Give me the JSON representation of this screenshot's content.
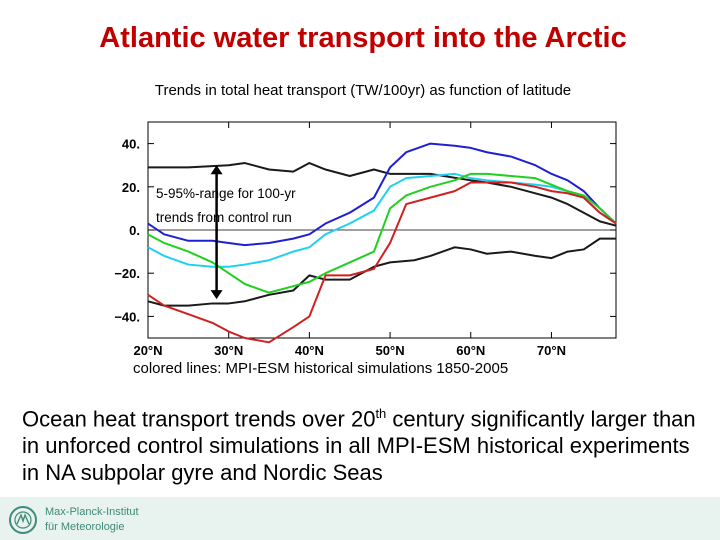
{
  "slide": {
    "title": "Atlantic water transport into the Arctic",
    "subtitle": "Trends in total heat transport (TW/100yr) as function of latitude",
    "caption": "colored  lines: MPI-ESM historical simulations 1850-2005",
    "body_part1": "Ocean heat transport trends over 20",
    "body_sup": "th",
    "body_part2": " century significantly larger than in unforced control simulations in all MPI-ESM historical experiments in NA subpolar gyre and Nordic Seas",
    "logo_line1": "Max-Planck-Institut",
    "logo_line2": "für Meteorologie",
    "logo_color": "#3f8a78"
  },
  "chart_data": {
    "type": "line",
    "title": "",
    "xlabel": "",
    "ylabel": "",
    "xlim": [
      20,
      78
    ],
    "ylim": [
      -50,
      50
    ],
    "x_ticks": [
      20,
      30,
      40,
      50,
      60,
      70
    ],
    "x_tick_labels": [
      "20°N",
      "30°N",
      "40°N",
      "50°N",
      "60°N",
      "70°N"
    ],
    "y_ticks": [
      40,
      20,
      0,
      -20,
      -40
    ],
    "y_tick_labels": [
      "40.",
      "20.",
      "0.",
      "−20.",
      "−40."
    ],
    "zero_line": true,
    "annotation": {
      "text_line1": "5-95%-range for 100-yr",
      "text_line2": "trends from control run",
      "x": 28.5,
      "y_top": 30,
      "y_bottom": -32
    },
    "series": [
      {
        "color": "#1a1a1a",
        "x": [
          20,
          25,
          30,
          32,
          35,
          38,
          40,
          42,
          45,
          48,
          50,
          55,
          60,
          62,
          65,
          68,
          70,
          72,
          74,
          76,
          78
        ],
        "y": [
          29,
          29,
          30,
          31,
          28,
          27,
          31,
          28,
          25,
          28,
          26,
          26,
          23,
          22,
          20,
          17,
          15,
          12,
          8,
          4,
          2
        ]
      },
      {
        "color": "#1a1a1a",
        "x": [
          20,
          22,
          25,
          28,
          30,
          32,
          35,
          38,
          40,
          42,
          45,
          48,
          50,
          53,
          55,
          58,
          60,
          62,
          65,
          68,
          70,
          72,
          74,
          76,
          78
        ],
        "y": [
          -33,
          -35,
          -35,
          -34,
          -34,
          -33,
          -30,
          -28,
          -21,
          -23,
          -23,
          -17,
          -15,
          -14,
          -12,
          -8,
          -9,
          -11,
          -10,
          -12,
          -13,
          -10,
          -9,
          -4,
          -4
        ]
      },
      {
        "color": "#2020d0",
        "x": [
          20,
          22,
          25,
          28,
          30,
          32,
          35,
          38,
          40,
          42,
          45,
          48,
          50,
          52,
          55,
          58,
          60,
          62,
          65,
          68,
          70,
          72,
          74,
          76,
          78
        ],
        "y": [
          3,
          -2,
          -5,
          -5,
          -6,
          -7,
          -6,
          -4,
          -2,
          3,
          8,
          15,
          29,
          36,
          40,
          39,
          38,
          36,
          34,
          30,
          26,
          23,
          18,
          10,
          3
        ]
      },
      {
        "color": "#20d0f0",
        "x": [
          20,
          22,
          25,
          28,
          30,
          32,
          35,
          38,
          40,
          42,
          45,
          48,
          50,
          52,
          55,
          58,
          60,
          62,
          65,
          68,
          70,
          72,
          74,
          76,
          78
        ],
        "y": [
          -8,
          -12,
          -16,
          -17,
          -17,
          -16,
          -14,
          -10,
          -8,
          -2,
          3,
          9,
          20,
          24,
          25,
          26,
          24,
          23,
          22,
          21,
          20,
          18,
          15,
          8,
          3
        ]
      },
      {
        "color": "#20d020",
        "x": [
          20,
          22,
          25,
          28,
          30,
          32,
          35,
          38,
          40,
          42,
          45,
          48,
          50,
          52,
          55,
          58,
          60,
          62,
          65,
          68,
          70,
          72,
          74,
          76,
          78
        ],
        "y": [
          -2,
          -6,
          -10,
          -15,
          -20,
          -25,
          -29,
          -26,
          -24,
          -20,
          -15,
          -10,
          10,
          16,
          20,
          23,
          26,
          26,
          25,
          24,
          21,
          18,
          16,
          10,
          3
        ]
      },
      {
        "color": "#d02020",
        "x": [
          20,
          22,
          25,
          28,
          30,
          32,
          35,
          38,
          40,
          42,
          45,
          48,
          50,
          52,
          55,
          58,
          60,
          62,
          65,
          68,
          70,
          72,
          74,
          76,
          78
        ],
        "y": [
          -30,
          -35,
          -39,
          -43,
          -47,
          -50,
          -52,
          -45,
          -40,
          -21,
          -21,
          -18,
          -6,
          12,
          15,
          18,
          22,
          22,
          22,
          20,
          18,
          17,
          15,
          8,
          3
        ]
      }
    ]
  }
}
